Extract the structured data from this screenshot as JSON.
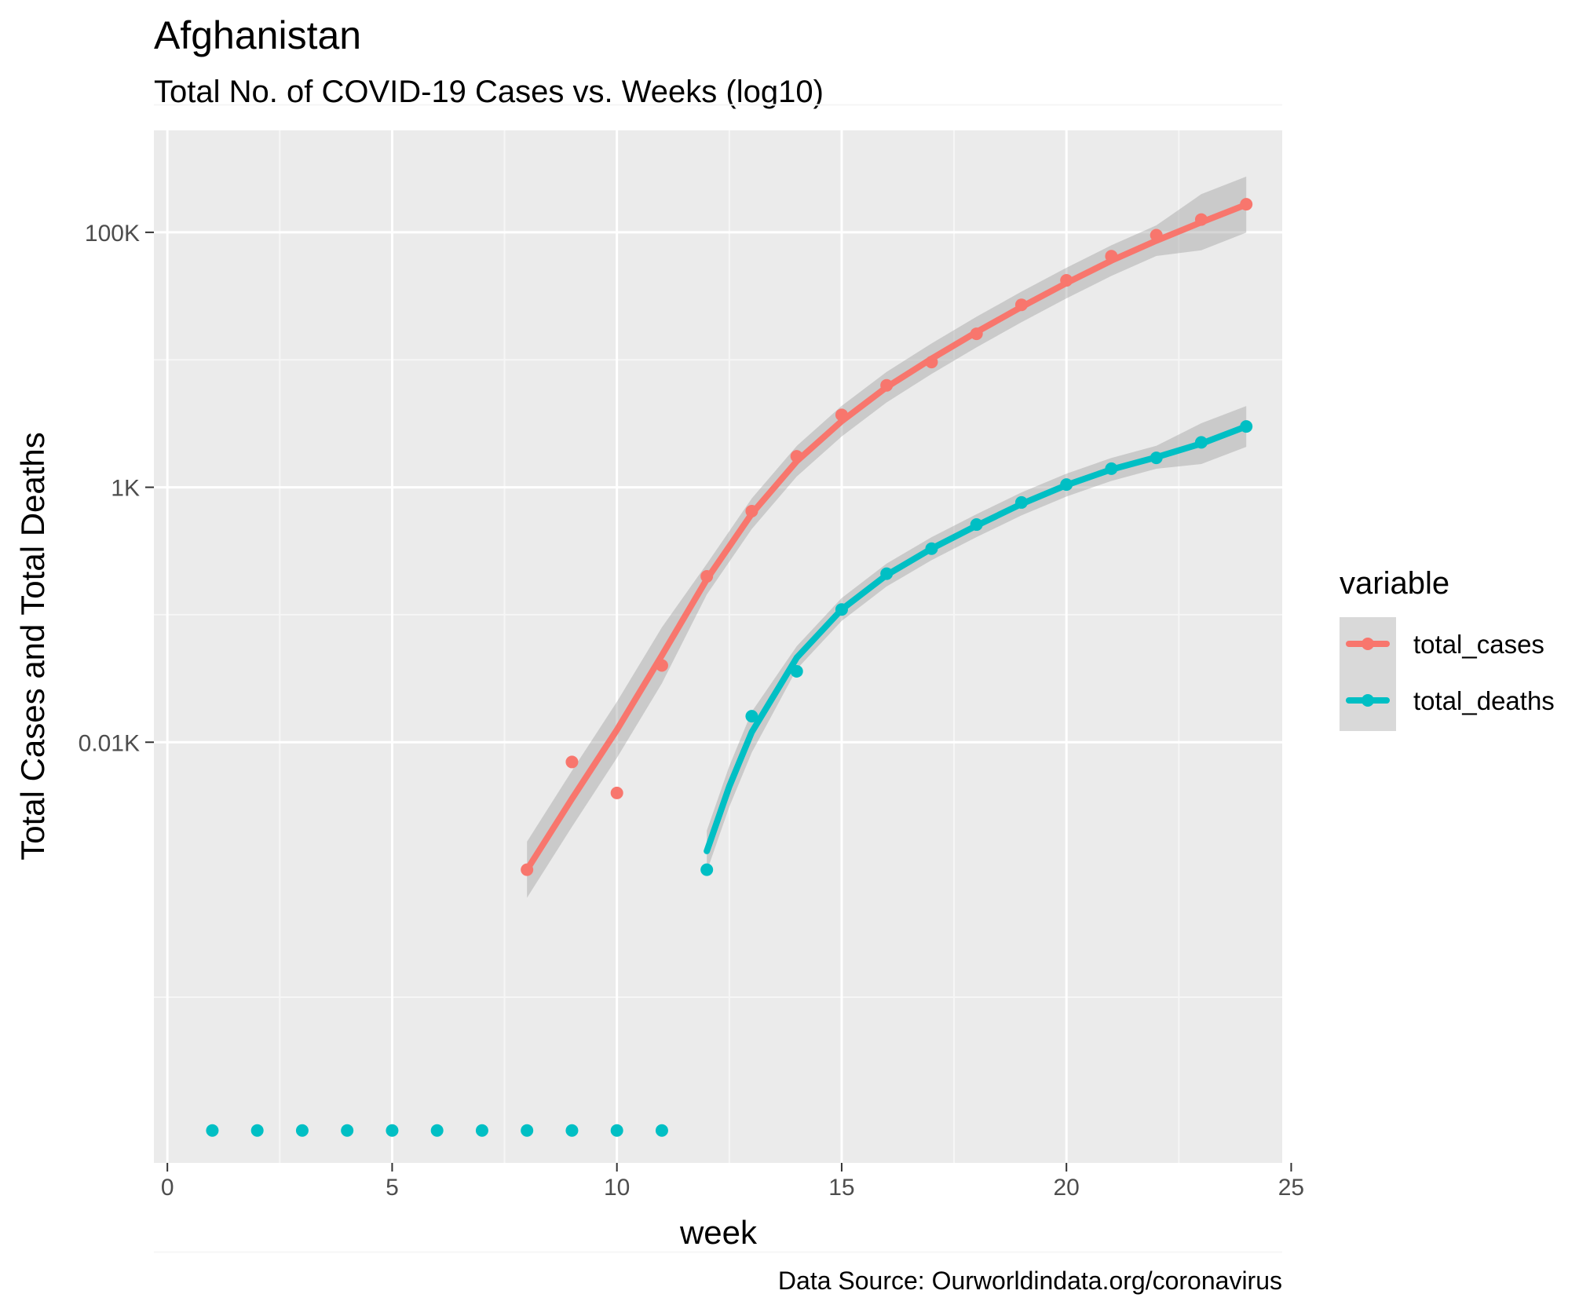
{
  "chart_data": {
    "type": "line",
    "title": "Afghanistan",
    "subtitle": "Total No. of COVID-19 Cases vs. Weeks (log10)",
    "xlabel": "week",
    "ylabel": "Total Cases and Total Deaths",
    "caption": "Data Source: Ourworldindata.org/coronavirus",
    "xlim": [
      -0.3,
      24.8
    ],
    "ylim_log10": [
      -2.3,
      5.8
    ],
    "y_scale": "log10",
    "x_ticks": [
      0,
      5,
      10,
      15,
      20,
      25
    ],
    "x_tick_labels": [
      "0",
      "5",
      "10",
      "15",
      "20",
      "25"
    ],
    "y_ticks": [
      10,
      1000,
      100000
    ],
    "y_tick_labels": [
      "0.01K",
      "1K",
      "100K"
    ],
    "grid": true,
    "legend": {
      "title": "variable",
      "position": "right"
    },
    "series": [
      {
        "name": "total_cases",
        "color": "#f8766d",
        "points": [
          [
            8,
            1
          ],
          [
            9,
            7
          ],
          [
            10,
            4
          ],
          [
            11,
            40
          ],
          [
            12,
            200
          ],
          [
            13,
            650
          ],
          [
            14,
            1750
          ],
          [
            15,
            3700
          ],
          [
            16,
            6300
          ],
          [
            17,
            9600
          ],
          [
            18,
            16000
          ],
          [
            19,
            27000
          ],
          [
            20,
            42000
          ],
          [
            21,
            65000
          ],
          [
            22,
            95000
          ],
          [
            23,
            126000
          ],
          [
            24,
            166000
          ]
        ],
        "smooth": [
          [
            8,
            1
          ],
          [
            9,
            3.6
          ],
          [
            10,
            12.5
          ],
          [
            11,
            48
          ],
          [
            12,
            190
          ],
          [
            13,
            620
          ],
          [
            14,
            1600
          ],
          [
            15,
            3300
          ],
          [
            16,
            6100
          ],
          [
            17,
            10200
          ],
          [
            18,
            16500
          ],
          [
            19,
            26000
          ],
          [
            20,
            40000
          ],
          [
            21,
            60000
          ],
          [
            22,
            86000
          ],
          [
            23,
            120000
          ],
          [
            24,
            165000
          ]
        ]
      },
      {
        "name": "total_deaths",
        "color": "#00bfc4",
        "points": [
          [
            1,
            0.009
          ],
          [
            2,
            0.009
          ],
          [
            3,
            0.009
          ],
          [
            4,
            0.009
          ],
          [
            5,
            0.009
          ],
          [
            6,
            0.009
          ],
          [
            7,
            0.009
          ],
          [
            8,
            0.009
          ],
          [
            9,
            0.009
          ],
          [
            10,
            0.009
          ],
          [
            11,
            0.009
          ],
          [
            12,
            1
          ],
          [
            13,
            16
          ],
          [
            14,
            36
          ],
          [
            15,
            110
          ],
          [
            16,
            210
          ],
          [
            17,
            330
          ],
          [
            18,
            510
          ],
          [
            19,
            760
          ],
          [
            20,
            1050
          ],
          [
            21,
            1400
          ],
          [
            22,
            1700
          ],
          [
            23,
            2250
          ],
          [
            24,
            3000
          ]
        ],
        "smooth": [
          [
            12,
            1.4
          ],
          [
            12.5,
            4.5
          ],
          [
            13,
            12
          ],
          [
            14,
            46
          ],
          [
            15,
            110
          ],
          [
            16,
            205
          ],
          [
            17,
            330
          ],
          [
            18,
            500
          ],
          [
            19,
            740
          ],
          [
            20,
            1040
          ],
          [
            21,
            1380
          ],
          [
            22,
            1720
          ],
          [
            23,
            2200
          ],
          [
            24,
            3000
          ]
        ]
      }
    ]
  }
}
